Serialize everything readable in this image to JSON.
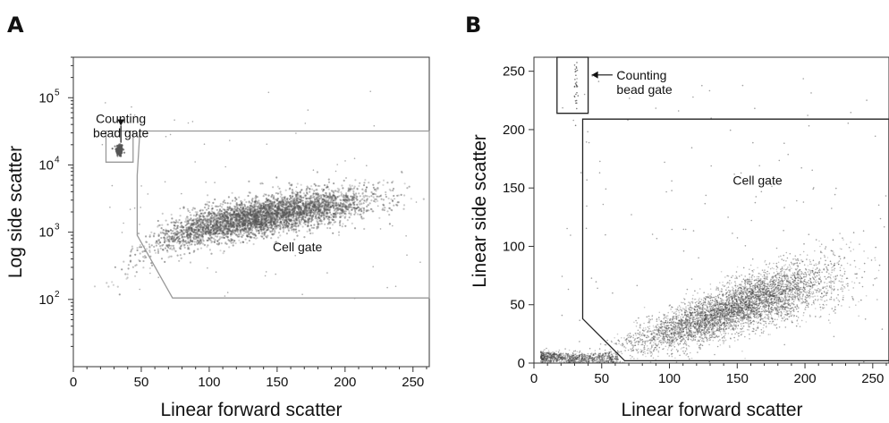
{
  "chart_data": [
    {
      "panel": "A",
      "type": "scatter",
      "xlabel": "Linear forward scatter",
      "ylabel": "Log side scatter",
      "x_ticks": [
        "0",
        "50",
        "100",
        "150",
        "200",
        "250"
      ],
      "x_tick_values": [
        0,
        50,
        100,
        150,
        200,
        250
      ],
      "y_ticks": [
        {
          "base": "10",
          "exp": "2",
          "value": 100
        },
        {
          "base": "10",
          "exp": "3",
          "value": 1000
        },
        {
          "base": "10",
          "exp": "4",
          "value": 10000
        },
        {
          "base": "10",
          "exp": "5",
          "value": 100000
        }
      ],
      "xlim": [
        0,
        262
      ],
      "ylim": [
        10,
        400000
      ],
      "yscale": "log",
      "gate_color": "#999999",
      "point_color": "#555555",
      "annotations": [
        {
          "lines": [
            "Counting",
            "bead gate"
          ],
          "x": 35,
          "y": 42000
        },
        {
          "lines": [
            "Cell gate"
          ],
          "x": 165,
          "y": 520
        }
      ],
      "gates": [
        {
          "name": "Counting bead gate",
          "polygon": [
            [
              24,
              11000
            ],
            [
              44,
              11000
            ],
            [
              44,
              32000
            ],
            [
              24,
              32000
            ]
          ]
        },
        {
          "name": "Cell gate",
          "polygon": [
            [
              49,
              32000
            ],
            [
              262,
              32000
            ],
            [
              262,
              105
            ],
            [
              73,
              105
            ],
            [
              47,
              900
            ],
            [
              47,
              7000
            ]
          ]
        }
      ],
      "populations": [
        {
          "kind": "beads",
          "n": 160,
          "x_mean": 34,
          "x_sd": 1.3,
          "y_mean_log": 4.22,
          "y_sd_log": 0.05
        },
        {
          "kind": "cells",
          "n": 4200,
          "x_min": 22,
          "x_max": 258,
          "curve": [
            [
              22,
              2.1
            ],
            [
              40,
              2.55
            ],
            [
              60,
              2.85
            ],
            [
              100,
              3.1
            ],
            [
              150,
              3.28
            ],
            [
              200,
              3.42
            ],
            [
              250,
              3.55
            ]
          ],
          "y_sd_log": 0.14
        }
      ]
    },
    {
      "panel": "B",
      "type": "scatter",
      "xlabel": "Linear forward scatter",
      "ylabel": "Linear side scatter",
      "x_ticks": [
        "0",
        "50",
        "100",
        "150",
        "200",
        "250"
      ],
      "x_tick_values": [
        0,
        50,
        100,
        150,
        200,
        250
      ],
      "y_ticks": [
        "0",
        "50",
        "100",
        "150",
        "200",
        "250"
      ],
      "y_tick_values": [
        0,
        50,
        100,
        150,
        200,
        250
      ],
      "xlim": [
        0,
        262
      ],
      "ylim": [
        0,
        262
      ],
      "yscale": "linear",
      "gate_color": "#222222",
      "point_color": "#444444",
      "annotations": [
        {
          "lines": [
            "Counting",
            "bead gate"
          ],
          "x": 61,
          "y": 243
        },
        {
          "lines": [
            "Cell gate"
          ],
          "x": 165,
          "y": 153
        }
      ],
      "gates": [
        {
          "name": "Counting bead gate",
          "polygon": [
            [
              17,
              214
            ],
            [
              40,
              214
            ],
            [
              40,
              262
            ],
            [
              17,
              262
            ]
          ]
        },
        {
          "name": "Cell gate",
          "polygon": [
            [
              36,
              209
            ],
            [
              262,
              209
            ],
            [
              262,
              2
            ],
            [
              67,
              2
            ],
            [
              36,
              38
            ]
          ]
        }
      ],
      "populations": [
        {
          "kind": "beads",
          "n": 30,
          "x_mean": 31,
          "x_sd": 0.8,
          "y_mean": 240,
          "y_sd": 12
        },
        {
          "kind": "debris",
          "n": 900,
          "x_min": 5,
          "x_max": 62,
          "y_mean": 4,
          "y_sd": 2.5
        },
        {
          "kind": "cells",
          "n": 4800,
          "x_min": 40,
          "x_max": 258,
          "curve": [
            [
              40,
              8
            ],
            [
              80,
              20
            ],
            [
              120,
              35
            ],
            [
              160,
              52
            ],
            [
              200,
              66
            ],
            [
              250,
              80
            ]
          ],
          "y_sd": 10
        }
      ]
    }
  ]
}
